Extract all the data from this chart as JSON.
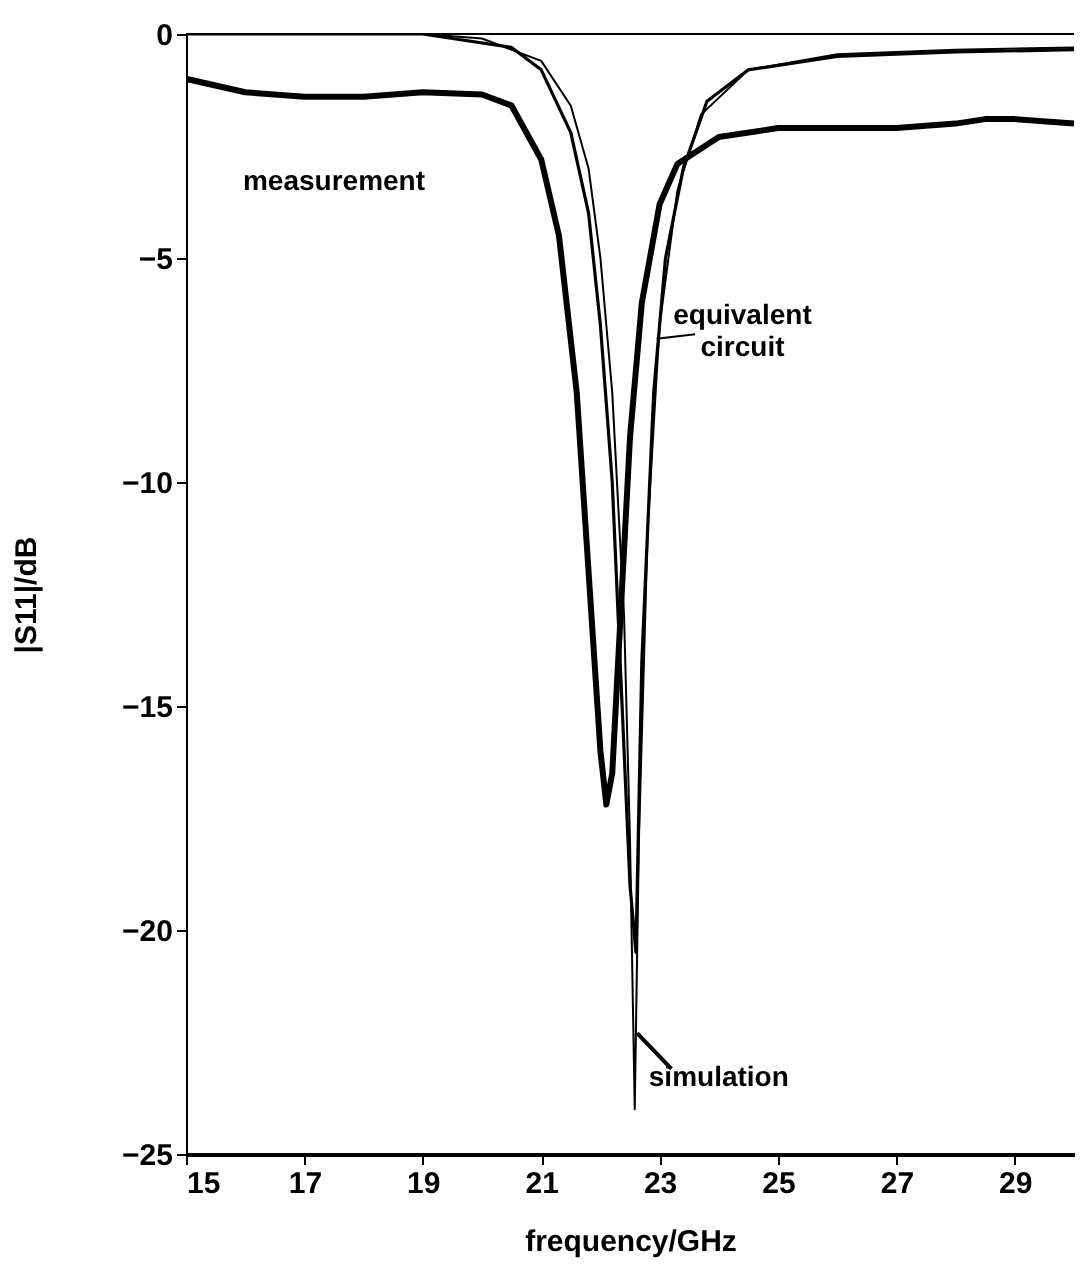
{
  "chart_data": {
    "type": "line",
    "xlabel": "frequency/GHz",
    "ylabel": "|S11|/dB",
    "xlim": [
      15,
      30
    ],
    "ylim": [
      -25,
      0
    ],
    "xticks": [
      15,
      17,
      19,
      21,
      23,
      25,
      27,
      29
    ],
    "yticks": [
      0,
      -5,
      -10,
      -15,
      -20,
      -25
    ],
    "grid": false,
    "marker": "none",
    "line_style": "solid",
    "series": [
      {
        "name": "measurement",
        "color": "#000000",
        "x": [
          15,
          16,
          17,
          18,
          19,
          20,
          20.5,
          21,
          21.3,
          21.6,
          21.8,
          22.0,
          22.1,
          22.2,
          22.3,
          22.5,
          22.7,
          23.0,
          23.3,
          24,
          25,
          26,
          27,
          28,
          28.5,
          29,
          30
        ],
        "values": [
          -1.0,
          -1.3,
          -1.4,
          -1.4,
          -1.3,
          -1.35,
          -1.6,
          -2.8,
          -4.5,
          -8,
          -12,
          -16,
          -17.2,
          -16.5,
          -14,
          -9,
          -6,
          -3.8,
          -2.9,
          -2.3,
          -2.1,
          -2.1,
          -2.1,
          -2.0,
          -1.9,
          -1.9,
          -2.0
        ]
      },
      {
        "name": "equivalent circuit",
        "color": "#000000",
        "x": [
          15,
          17,
          19,
          19.5,
          20.5,
          21,
          21.5,
          21.8,
          22.0,
          22.2,
          22.4,
          22.5,
          22.6,
          22.7,
          22.9,
          23.1,
          23.4,
          23.8,
          24.5,
          26,
          28,
          30
        ],
        "values": [
          0,
          0,
          0,
          -0.1,
          -0.3,
          -0.8,
          -2.2,
          -4,
          -6.5,
          -10,
          -16,
          -19,
          -20.5,
          -14,
          -8,
          -5,
          -3,
          -1.5,
          -0.8,
          -0.5,
          -0.4,
          -0.35
        ]
      },
      {
        "name": "simulation",
        "color": "#000000",
        "x": [
          15,
          17,
          19,
          20,
          21,
          21.5,
          21.8,
          22.0,
          22.2,
          22.4,
          22.5,
          22.58,
          22.65,
          22.8,
          23.0,
          23.3,
          23.7,
          24.5,
          26,
          28,
          30
        ],
        "values": [
          0,
          0,
          0,
          -0.1,
          -0.6,
          -1.6,
          -3,
          -5,
          -8,
          -13,
          -18,
          -24,
          -18,
          -11,
          -6.5,
          -3.5,
          -1.8,
          -0.8,
          -0.45,
          -0.35,
          -0.3
        ]
      }
    ]
  }
}
